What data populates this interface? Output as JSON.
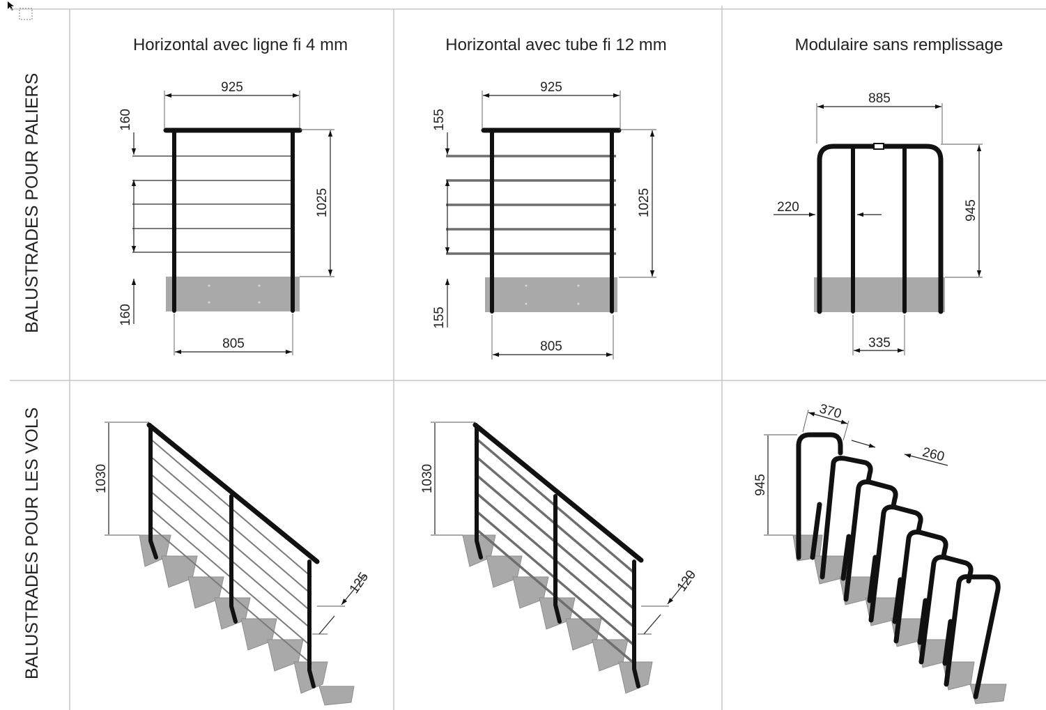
{
  "columns": [
    {
      "title": "Horizontal avec ligne fi 4 mm"
    },
    {
      "title": "Horizontal avec tube fi 12 mm"
    },
    {
      "title": "Modulaire sans remplissage"
    }
  ],
  "rows": [
    {
      "label": "BALUSTRADES POUR PALIERS"
    },
    {
      "label": "BALUSTRADES POUR LES VOLS"
    }
  ],
  "dims": {
    "p1": {
      "top_width": "925",
      "height": "1025",
      "bottom_width": "805",
      "top_gap": "160",
      "bottom_gap": "160"
    },
    "p2": {
      "top_width": "925",
      "height": "1025",
      "bottom_width": "805",
      "top_gap": "155",
      "bottom_gap": "155"
    },
    "p3": {
      "width": "885",
      "height": "945",
      "side": "220",
      "spacing": "335"
    },
    "v1": {
      "height": "1030",
      "spacing": "125"
    },
    "v2": {
      "height": "1030",
      "spacing": "120"
    },
    "v3": {
      "height": "945",
      "width": "370",
      "offset": "260"
    }
  },
  "colors": {
    "grid": "#bdbdbd",
    "steel": "#111111",
    "concrete": "#a9a9a9",
    "text": "#222222"
  }
}
